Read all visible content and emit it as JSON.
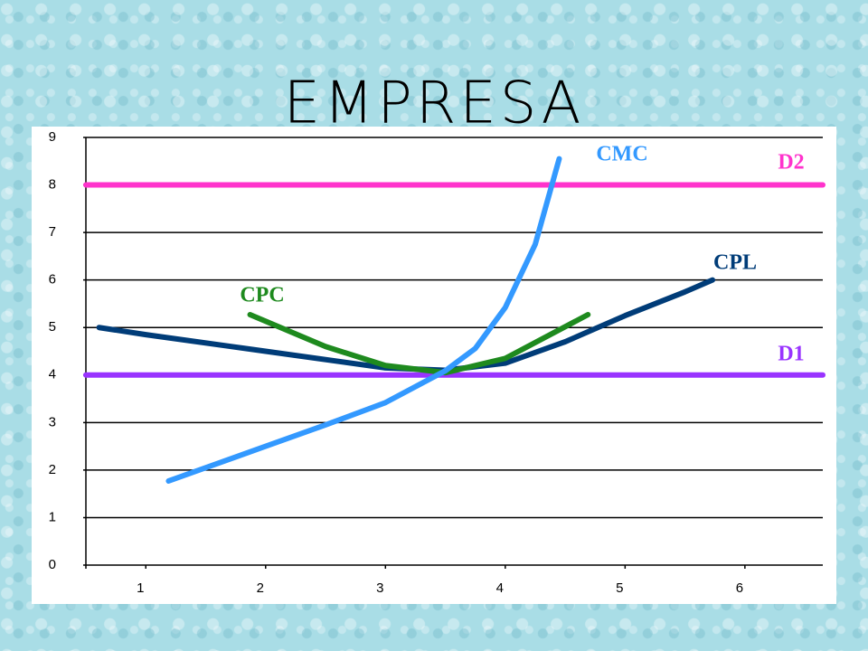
{
  "chart_data": {
    "type": "line",
    "title": "EMPRESA",
    "xlim": [
      0.5,
      6.65
    ],
    "xticks": [
      1,
      2,
      3,
      4,
      5,
      6
    ],
    "ylim": [
      0,
      9
    ],
    "yticks": [
      0,
      1,
      2,
      3,
      4,
      5,
      6,
      7,
      8,
      9
    ],
    "grid": true,
    "series": [
      {
        "name": "D2",
        "color": "#ff33cc",
        "x": [
          0.5,
          6.65
        ],
        "values": [
          8,
          8
        ]
      },
      {
        "name": "D1",
        "color": "#9933ff",
        "x": [
          0.5,
          6.65
        ],
        "values": [
          4,
          4
        ]
      },
      {
        "name": "CPL",
        "color": "#003c78",
        "x": [
          0.61,
          1,
          2,
          3,
          3.5,
          4,
          4.5,
          5,
          5.5,
          5.73
        ],
        "values": [
          5.0,
          4.85,
          4.5,
          4.15,
          4.1,
          4.25,
          4.7,
          5.25,
          5.75,
          6.0
        ]
      },
      {
        "name": "CPC",
        "color": "#1e8a1e",
        "x": [
          1.87,
          2.5,
          3,
          3.5,
          4,
          4.69
        ],
        "values": [
          5.27,
          4.6,
          4.2,
          4.05,
          4.35,
          5.27
        ]
      },
      {
        "name": "CMC",
        "color": "#3399ff",
        "x": [
          1.19,
          2,
          2.5,
          3,
          3.5,
          3.75,
          4,
          4.25,
          4.45
        ],
        "values": [
          1.77,
          2.5,
          2.95,
          3.42,
          4.09,
          4.56,
          5.42,
          6.75,
          8.55
        ]
      }
    ]
  }
}
